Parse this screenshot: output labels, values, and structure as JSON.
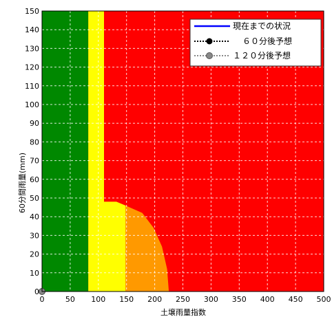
{
  "chart_data": {
    "type": "area",
    "xlabel": "土壌雨量指数",
    "ylabel": "60分間雨量(mm)",
    "xlim": [
      0,
      500
    ],
    "ylim": [
      0,
      150
    ],
    "x_ticks": [
      "0",
      "50",
      "100",
      "150",
      "200",
      "250",
      "300",
      "350",
      "400",
      "450",
      "500"
    ],
    "y_ticks": [
      "0",
      "10",
      "20",
      "30",
      "40",
      "50",
      "60",
      "70",
      "80",
      "90",
      "100",
      "110",
      "120",
      "130",
      "140",
      "150"
    ],
    "grid": true,
    "legend_position": "top-right",
    "legend": [
      {
        "label": "現在までの状況",
        "style": "solid-line",
        "color": "#0000ff"
      },
      {
        "label": "６０分後予想",
        "style": "dotted-line-marker",
        "color": "#000000"
      },
      {
        "label": "１２０分後予想",
        "style": "dotted-line-marker",
        "color": "#888888"
      }
    ],
    "regions": [
      {
        "name": "red",
        "color": "#ff0000",
        "polygon": [
          [
            0,
            0
          ],
          [
            500,
            0
          ],
          [
            500,
            150
          ],
          [
            0,
            150
          ]
        ]
      },
      {
        "name": "orange",
        "color": "#ff9900",
        "polygon": [
          [
            148,
            0
          ],
          [
            225,
            0
          ],
          [
            222,
            12
          ],
          [
            213,
            24
          ],
          [
            198,
            34
          ],
          [
            178,
            42
          ],
          [
            148,
            46
          ]
        ]
      },
      {
        "name": "yellow",
        "color": "#ffff00",
        "polygon": [
          [
            82,
            0
          ],
          [
            148,
            0
          ],
          [
            148,
            46
          ],
          [
            132,
            48
          ],
          [
            110,
            48
          ],
          [
            110,
            150
          ],
          [
            82,
            150
          ]
        ]
      },
      {
        "name": "green",
        "color": "#008800",
        "polygon": [
          [
            0,
            0
          ],
          [
            82,
            0
          ],
          [
            82,
            150
          ],
          [
            0,
            150
          ]
        ]
      }
    ],
    "series": [
      {
        "points": [
          [
            0,
            0
          ]
        ],
        "color": "#888888"
      }
    ],
    "colors": {
      "grid": "#ffffff",
      "axis": "#000000"
    }
  }
}
